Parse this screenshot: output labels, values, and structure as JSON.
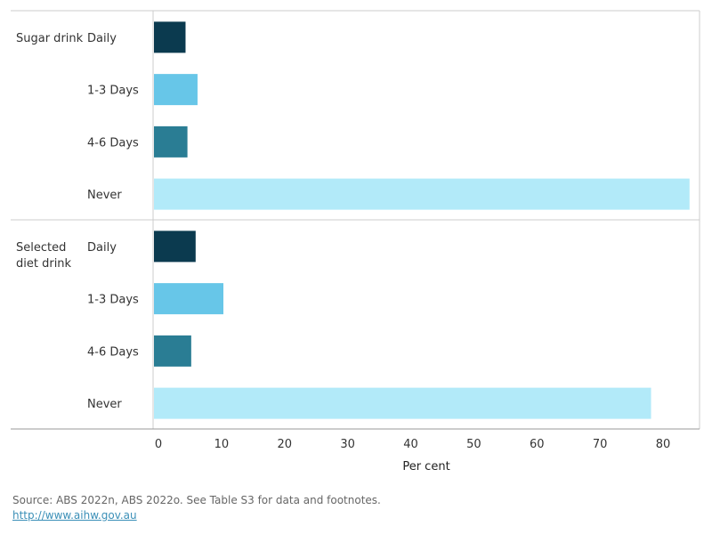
{
  "chart_data": {
    "type": "bar",
    "orientation": "horizontal",
    "xlabel": "Per cent",
    "xlim": [
      0,
      87
    ],
    "xticks": [
      0,
      10,
      20,
      30,
      40,
      50,
      60,
      70,
      80
    ],
    "categories": [
      "Daily",
      "1-3 Days",
      "4-6 Days",
      "Never"
    ],
    "category_colors": [
      "#0b3a4f",
      "#67c6e8",
      "#2a7d94",
      "#b2eaf9"
    ],
    "groups": [
      {
        "name": "Sugar drink",
        "values": [
          4.3,
          6.2,
          4.6,
          84.2
        ]
      },
      {
        "name": "Selected diet drink",
        "values": [
          5.9,
          10.3,
          5.2,
          78.1
        ]
      }
    ],
    "grid": false,
    "legend": "none"
  },
  "footer": {
    "source": "Source: ABS 2022n, ABS 2022o. See Table S3 for data and footnotes.",
    "url": "http://www.aihw.gov.au"
  }
}
